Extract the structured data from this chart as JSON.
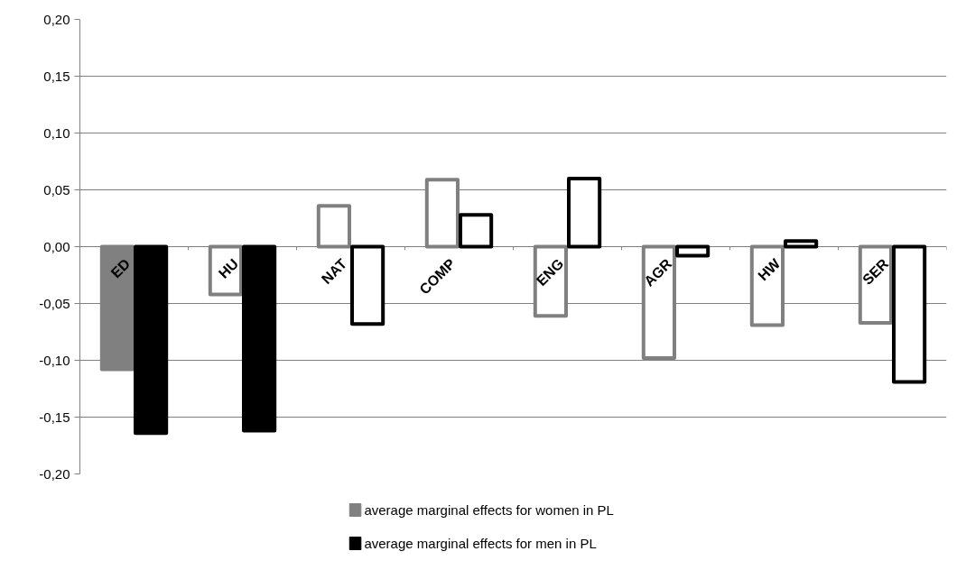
{
  "chart_data": {
    "type": "bar",
    "categories": [
      "ED",
      "HU",
      "NAT",
      "COMP",
      "ENG",
      "AGR",
      "HW",
      "SER"
    ],
    "series": [
      {
        "name": "average marginal effects for women in PL",
        "color": "#808080",
        "colors": [
          "#808080",
          "#ffffff",
          "#ffffff",
          "#ffffff",
          "#ffffff",
          "#ffffff",
          "#ffffff",
          "#ffffff"
        ],
        "values": [
          -0.108,
          -0.042,
          0.036,
          0.059,
          -0.061,
          -0.098,
          -0.069,
          -0.067
        ]
      },
      {
        "name": "average marginal effects for men in PL",
        "color": "#000000",
        "colors": [
          "#000000",
          "#000000",
          "#ffffff",
          "#ffffff",
          "#ffffff",
          "#ffffff",
          "#ffffff",
          "#ffffff"
        ],
        "values": [
          -0.164,
          -0.162,
          -0.068,
          0.028,
          0.06,
          -0.008,
          0.005,
          -0.119
        ]
      }
    ],
    "ylim": [
      -0.2,
      0.2
    ],
    "yticks": [
      {
        "value": -0.2,
        "label": "-0,20"
      },
      {
        "value": -0.15,
        "label": "-0,15"
      },
      {
        "value": -0.1,
        "label": "-0,10"
      },
      {
        "value": -0.05,
        "label": "-0,05"
      },
      {
        "value": 0,
        "label": "0,00"
      },
      {
        "value": 0.05,
        "label": "0,05"
      },
      {
        "value": 0.1,
        "label": "0,10"
      },
      {
        "value": 0.15,
        "label": "0,15"
      },
      {
        "value": 0.2,
        "label": "0,20"
      }
    ],
    "grid": "y",
    "legend": "bottom"
  }
}
